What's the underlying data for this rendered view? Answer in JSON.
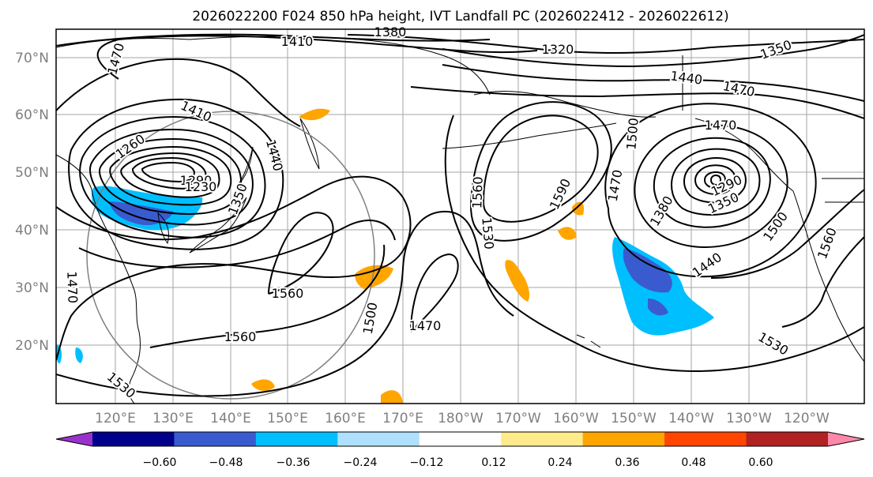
{
  "title": "2026022200 F024 850 hPa height, IVT Landfall PC (2026022412 - 2026022612)",
  "lat_labels": [
    "70°N",
    "60°N",
    "50°N",
    "40°N",
    "30°N",
    "20°N"
  ],
  "lon_labels": [
    "120°E",
    "130°E",
    "140°E",
    "150°E",
    "160°E",
    "170°E",
    "180°W",
    "170°W",
    "160°W",
    "150°W",
    "140°W",
    "130°W",
    "120°W"
  ],
  "contour_labels": [
    "1380",
    "1410",
    "1320",
    "1350",
    "1440",
    "1470",
    "1470",
    "1410",
    "1260",
    "1440",
    "1290",
    "1230",
    "1350",
    "1470",
    "1560",
    "1560",
    "1530",
    "1590",
    "1500",
    "1470",
    "1560",
    "1500",
    "1470",
    "1380",
    "1290",
    "1350",
    "1500",
    "1560",
    "1440",
    "1530",
    "1470",
    "1530"
  ],
  "colorbar": {
    "ticks": [
      "−0.60",
      "−0.48",
      "−0.36",
      "−0.24",
      "−0.12",
      "0.12",
      "0.24",
      "0.36",
      "0.48",
      "0.60"
    ],
    "colors": [
      "#9932cc",
      "#00008b",
      "#3a5bcf",
      "#00bfff",
      "#b0e0ff",
      "#ffffff",
      "#ffea8c",
      "#ffa500",
      "#ff4500",
      "#b22222",
      "#ff88aa"
    ]
  }
}
